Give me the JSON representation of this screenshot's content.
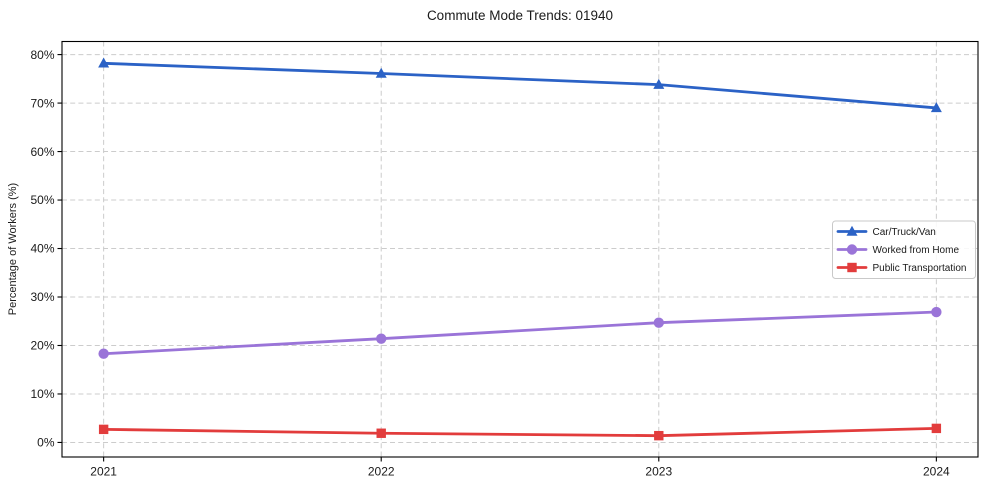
{
  "title": "Commute Mode Trends: 01940",
  "chart_data": {
    "type": "line",
    "title": "Commute Mode Trends: 01940",
    "xlabel": "",
    "ylabel": "Percentage of Workers (%)",
    "x": [
      2021,
      2022,
      2023,
      2024
    ],
    "x_tick_labels": [
      "2021",
      "2022",
      "2023",
      "2024"
    ],
    "y_ticks": [
      0,
      10,
      20,
      30,
      40,
      50,
      60,
      70,
      80
    ],
    "y_tick_labels": [
      "0%",
      "10%",
      "20%",
      "30%",
      "40%",
      "50%",
      "60%",
      "70%",
      "80%"
    ],
    "xlim": [
      2020.85,
      2024.15
    ],
    "ylim": [
      -3,
      82.7
    ],
    "grid": true,
    "grid_style": "dashed",
    "legend_position": "center right",
    "series": [
      {
        "name": "Car/Truck/Van",
        "marker": "triangle",
        "color": "#2b62c6",
        "values": [
          78.2,
          76.1,
          73.8,
          69.0
        ]
      },
      {
        "name": "Worked from Home",
        "marker": "circle",
        "color": "#9a74d8",
        "values": [
          18.3,
          21.4,
          24.7,
          26.9
        ]
      },
      {
        "name": "Public Transportation",
        "marker": "square",
        "color": "#e23c3c",
        "values": [
          2.7,
          1.9,
          1.4,
          2.9
        ]
      }
    ],
    "colors": {
      "grid": "#cccccc",
      "spine": "#000000",
      "text": "#1a1a1a",
      "legend_border": "#c9c9c9",
      "background": "#ffffff"
    }
  }
}
